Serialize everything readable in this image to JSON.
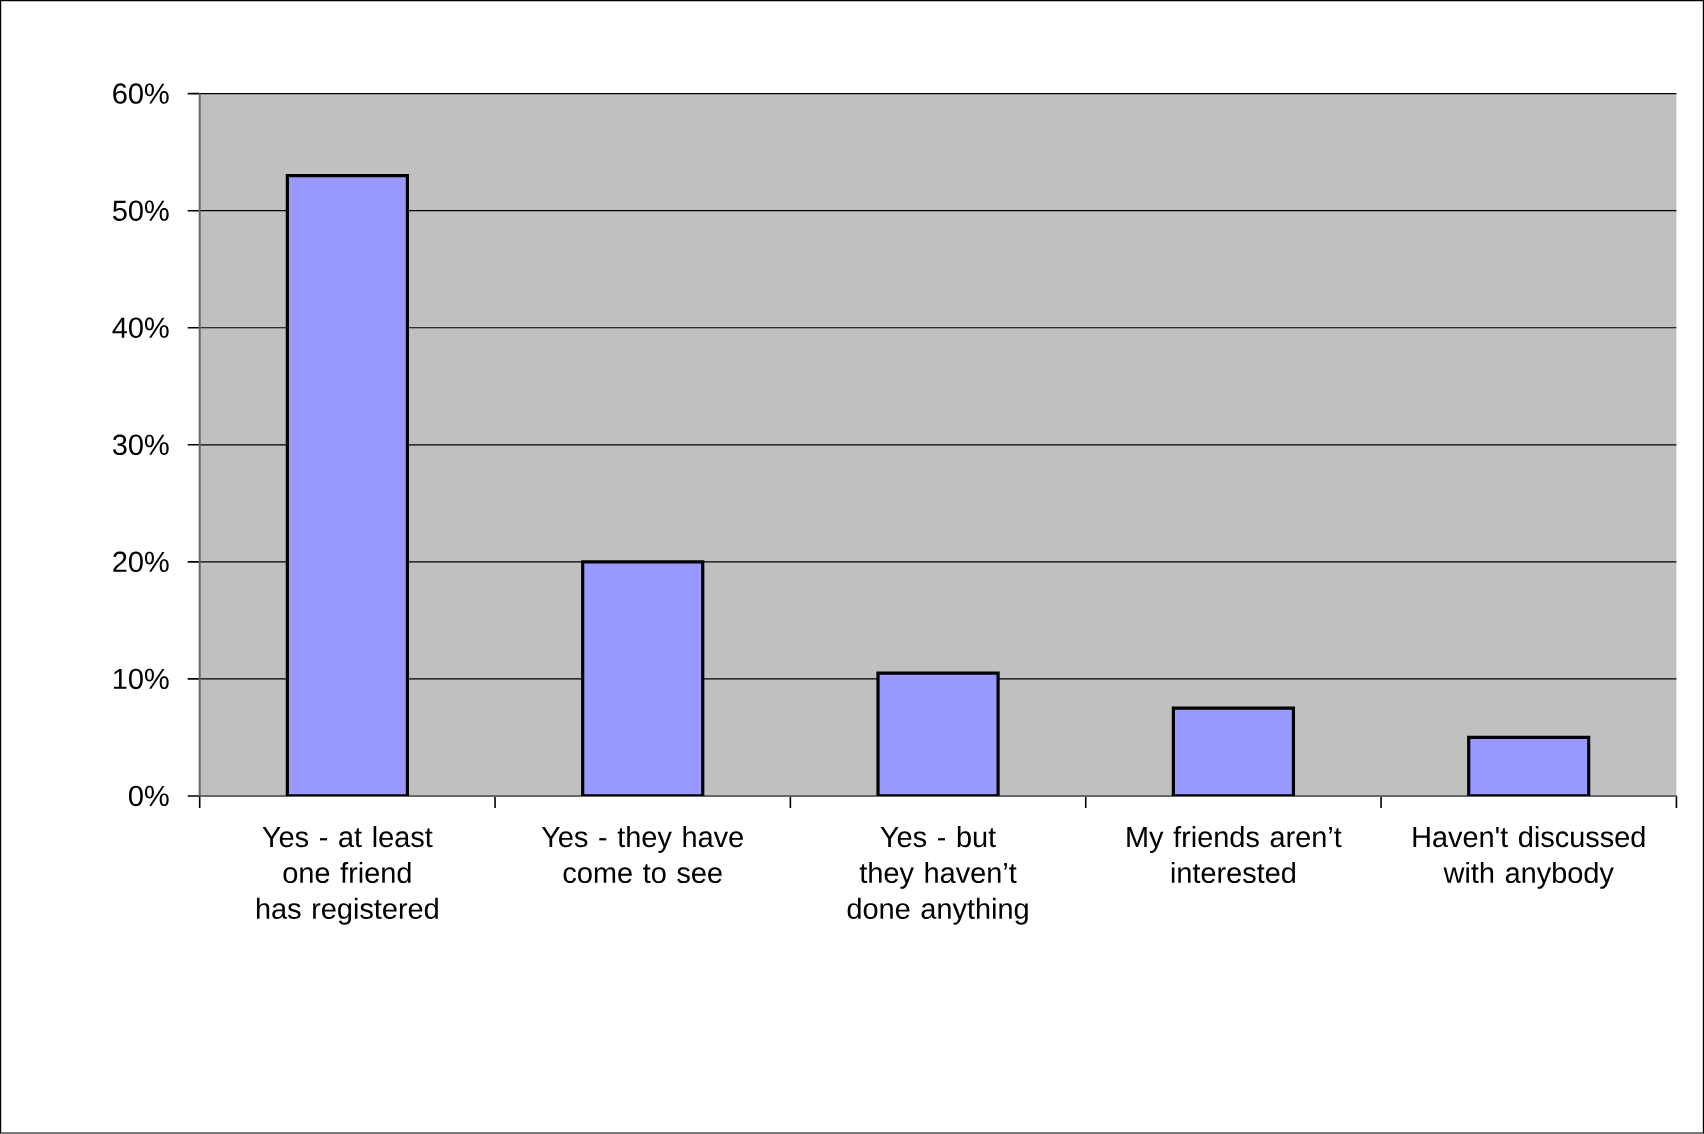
{
  "chart_data": {
    "type": "bar",
    "categories": [
      "Yes - at least one friend has registered",
      "Yes - they have come to see",
      "Yes - but they haven’t done anything",
      "My friends aren’t interested",
      "Haven't discussed with anybody"
    ],
    "values": [
      53,
      20,
      10.5,
      7.5,
      5
    ],
    "color": "#9999ff",
    "ylim": [
      0,
      60
    ],
    "yticks": [
      {
        "value": 0,
        "label": "0%"
      },
      {
        "value": 10,
        "label": "10%"
      },
      {
        "value": 20,
        "label": "20%"
      },
      {
        "value": 30,
        "label": "30%"
      },
      {
        "value": 40,
        "label": "40%"
      },
      {
        "value": 50,
        "label": "50%"
      },
      {
        "value": 60,
        "label": "60%"
      }
    ],
    "grid": "y"
  }
}
